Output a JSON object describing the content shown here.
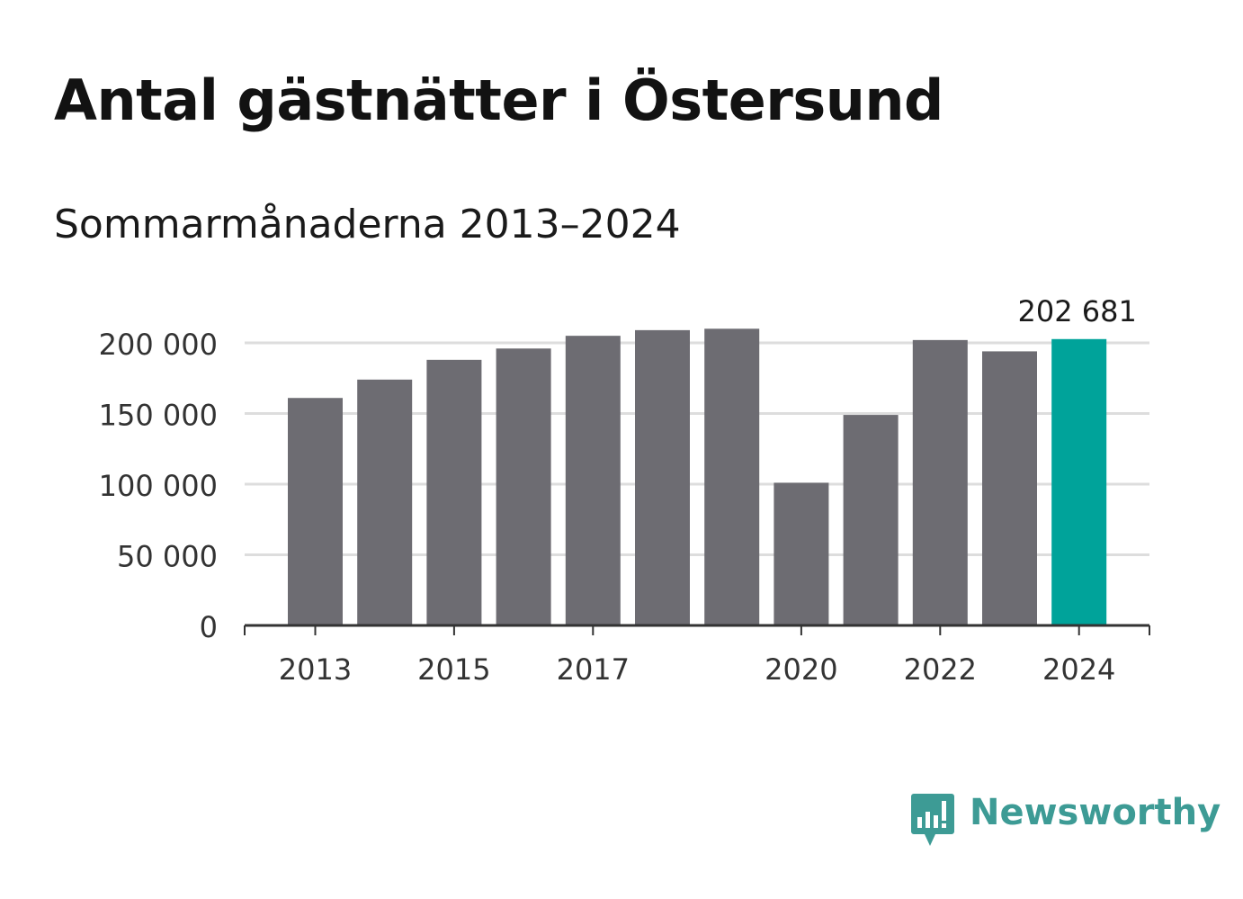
{
  "title": "Antal gästnätter i Östersund",
  "subtitle": "Sommarmånaderna 2013–2024",
  "brand": {
    "name": "Newsworthy",
    "color": "#3d9b95",
    "icon": "newsworthy-logo-icon"
  },
  "colors": {
    "bar": "#6d6c72",
    "highlight": "#00a39a",
    "grid": "#dddddd",
    "axis": "#333333",
    "text": "#333333"
  },
  "chart_data": {
    "type": "bar",
    "categories": [
      "2013",
      "2014",
      "2015",
      "2016",
      "2017",
      "2018",
      "2019",
      "2020",
      "2021",
      "2022",
      "2023",
      "2024"
    ],
    "values": [
      161000,
      174000,
      188000,
      196000,
      205000,
      209000,
      210000,
      101000,
      149000,
      202000,
      194000,
      202681
    ],
    "x_tick_labels": [
      "2013",
      "2015",
      "2017",
      "2020",
      "2022",
      "2024"
    ],
    "y_ticks": [
      0,
      50000,
      100000,
      150000,
      200000
    ],
    "y_tick_labels": [
      "0",
      "50 000",
      "100 000",
      "150 000",
      "200 000"
    ],
    "ylim": [
      0,
      200000
    ],
    "highlight_index": 11,
    "annotation": {
      "index": 11,
      "text": "202 681"
    },
    "grid": true,
    "legend": "none",
    "title": "Antal gästnätter i Östersund",
    "subtitle": "Sommarmånaderna 2013–2024",
    "xlabel": "",
    "ylabel": ""
  }
}
